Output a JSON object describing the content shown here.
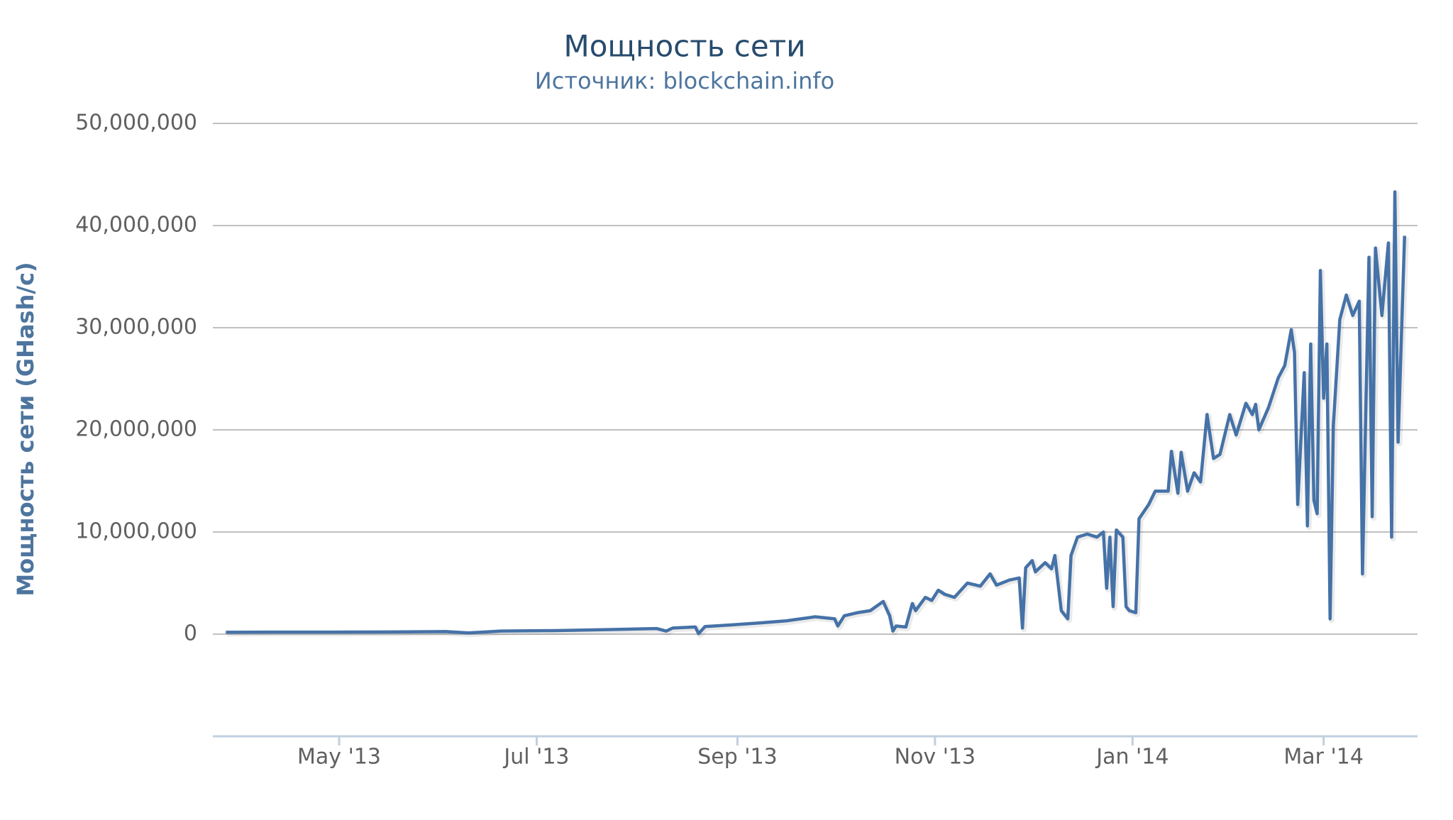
{
  "chart_data": {
    "type": "line",
    "title": "Мощность сети",
    "subtitle": "Источник: blockchain.info",
    "y_label": "Мощность сети (GHash/c)",
    "color": "#4572a7",
    "grid": true,
    "ylim": [
      -10000000,
      50000000
    ],
    "yticks": [
      0,
      {
        "value": 10000000,
        "label": "10,000,000"
      },
      {
        "value": 20000000,
        "label": "20,000,000"
      },
      {
        "value": 30000000,
        "label": "30,000,000"
      },
      {
        "value": 40000000,
        "label": "40,000,000"
      },
      {
        "value": 50000000,
        "label": "50,000,000"
      }
    ],
    "xlim": [
      "2013-03-23",
      "2014-03-30"
    ],
    "xticks": [
      {
        "value": "2013-05-01",
        "label": "May '13"
      },
      {
        "value": "2013-07-01",
        "label": "Jul '13"
      },
      {
        "value": "2013-09-01",
        "label": "Sep '13"
      },
      {
        "value": "2013-11-01",
        "label": "Nov '13"
      },
      {
        "value": "2014-01-01",
        "label": "Jan '14"
      },
      {
        "value": "2014-03-01",
        "label": "Mar '14"
      }
    ],
    "x": [
      "2013-03-27",
      "2013-04-12",
      "2013-04-29",
      "2013-05-17",
      "2013-06-03",
      "2013-06-10",
      "2013-06-20",
      "2013-07-07",
      "2013-07-24",
      "2013-08-07",
      "2013-08-10",
      "2013-08-12",
      "2013-08-19",
      "2013-08-20",
      "2013-08-22",
      "2013-08-30",
      "2013-09-08",
      "2013-09-16",
      "2013-09-25",
      "2013-10-01",
      "2013-10-02",
      "2013-10-04",
      "2013-10-08",
      "2013-10-12",
      "2013-10-16",
      "2013-10-18",
      "2013-10-19",
      "2013-10-20",
      "2013-10-23",
      "2013-10-25",
      "2013-10-26",
      "2013-10-29",
      "2013-10-31",
      "2013-11-02",
      "2013-11-04",
      "2013-11-07",
      "2013-11-11",
      "2013-11-15",
      "2013-11-18",
      "2013-11-20",
      "2013-11-24",
      "2013-11-27",
      "2013-11-28",
      "2013-11-29",
      "2013-12-01",
      "2013-12-02",
      "2013-12-05",
      "2013-12-07",
      "2013-12-08",
      "2013-12-10",
      "2013-12-12",
      "2013-12-13",
      "2013-12-15",
      "2013-12-18",
      "2013-12-21",
      "2013-12-23",
      "2013-12-24",
      "2013-12-25",
      "2013-12-26",
      "2013-12-27",
      "2013-12-29",
      "2013-12-30",
      "2013-12-31",
      "2014-01-02",
      "2014-01-03",
      "2014-01-06",
      "2014-01-08",
      "2014-01-12",
      "2014-01-13",
      "2014-01-15",
      "2014-01-16",
      "2014-01-18",
      "2014-01-20",
      "2014-01-22",
      "2014-01-24",
      "2014-01-26",
      "2014-01-28",
      "2014-01-31",
      "2014-02-02",
      "2014-02-05",
      "2014-02-07",
      "2014-02-08",
      "2014-02-09",
      "2014-02-12",
      "2014-02-15",
      "2014-02-17",
      "2014-02-19",
      "2014-02-20",
      "2014-02-21",
      "2014-02-23",
      "2014-02-24",
      "2014-02-25",
      "2014-02-26",
      "2014-02-27",
      "2014-02-28",
      "2014-03-01",
      "2014-03-02",
      "2014-03-03",
      "2014-03-04",
      "2014-03-06",
      "2014-03-08",
      "2014-03-10",
      "2014-03-12",
      "2014-03-13",
      "2014-03-15",
      "2014-03-16",
      "2014-03-17",
      "2014-03-19",
      "2014-03-21",
      "2014-03-22",
      "2014-03-23",
      "2014-03-24",
      "2014-03-26"
    ],
    "values": [
      180000,
      200000,
      200000,
      220000,
      250000,
      120000,
      300000,
      350000,
      450000,
      550000,
      300000,
      600000,
      700000,
      50000,
      750000,
      900000,
      1100000,
      1300000,
      1700000,
      1500000,
      800000,
      1800000,
      2100000,
      2300000,
      3200000,
      1800000,
      300000,
      800000,
      700000,
      3000000,
      2300000,
      3600000,
      3300000,
      4300000,
      3900000,
      3600000,
      5000000,
      4700000,
      5900000,
      4800000,
      5300000,
      5500000,
      600000,
      6500000,
      7200000,
      6100000,
      7000000,
      6400000,
      7700000,
      2300000,
      1500000,
      7700000,
      9500000,
      9800000,
      9500000,
      10000000,
      4500000,
      9500000,
      2700000,
      10200000,
      9500000,
      2700000,
      2300000,
      2100000,
      11300000,
      12700000,
      14000000,
      14000000,
      17900000,
      13800000,
      17800000,
      14000000,
      15800000,
      14900000,
      21500000,
      17200000,
      17600000,
      21500000,
      19500000,
      22600000,
      21500000,
      22500000,
      20000000,
      22200000,
      25100000,
      26300000,
      29800000,
      27600000,
      12700000,
      25600000,
      10600000,
      28400000,
      13100000,
      11800000,
      35600000,
      23100000,
      28400000,
      1500000,
      20400000,
      30800000,
      33200000,
      31200000,
      32600000,
      5900000,
      36900000,
      11500000,
      37800000,
      31200000,
      38300000,
      9500000,
      43300000,
      18800000,
      39000000
    ]
  }
}
